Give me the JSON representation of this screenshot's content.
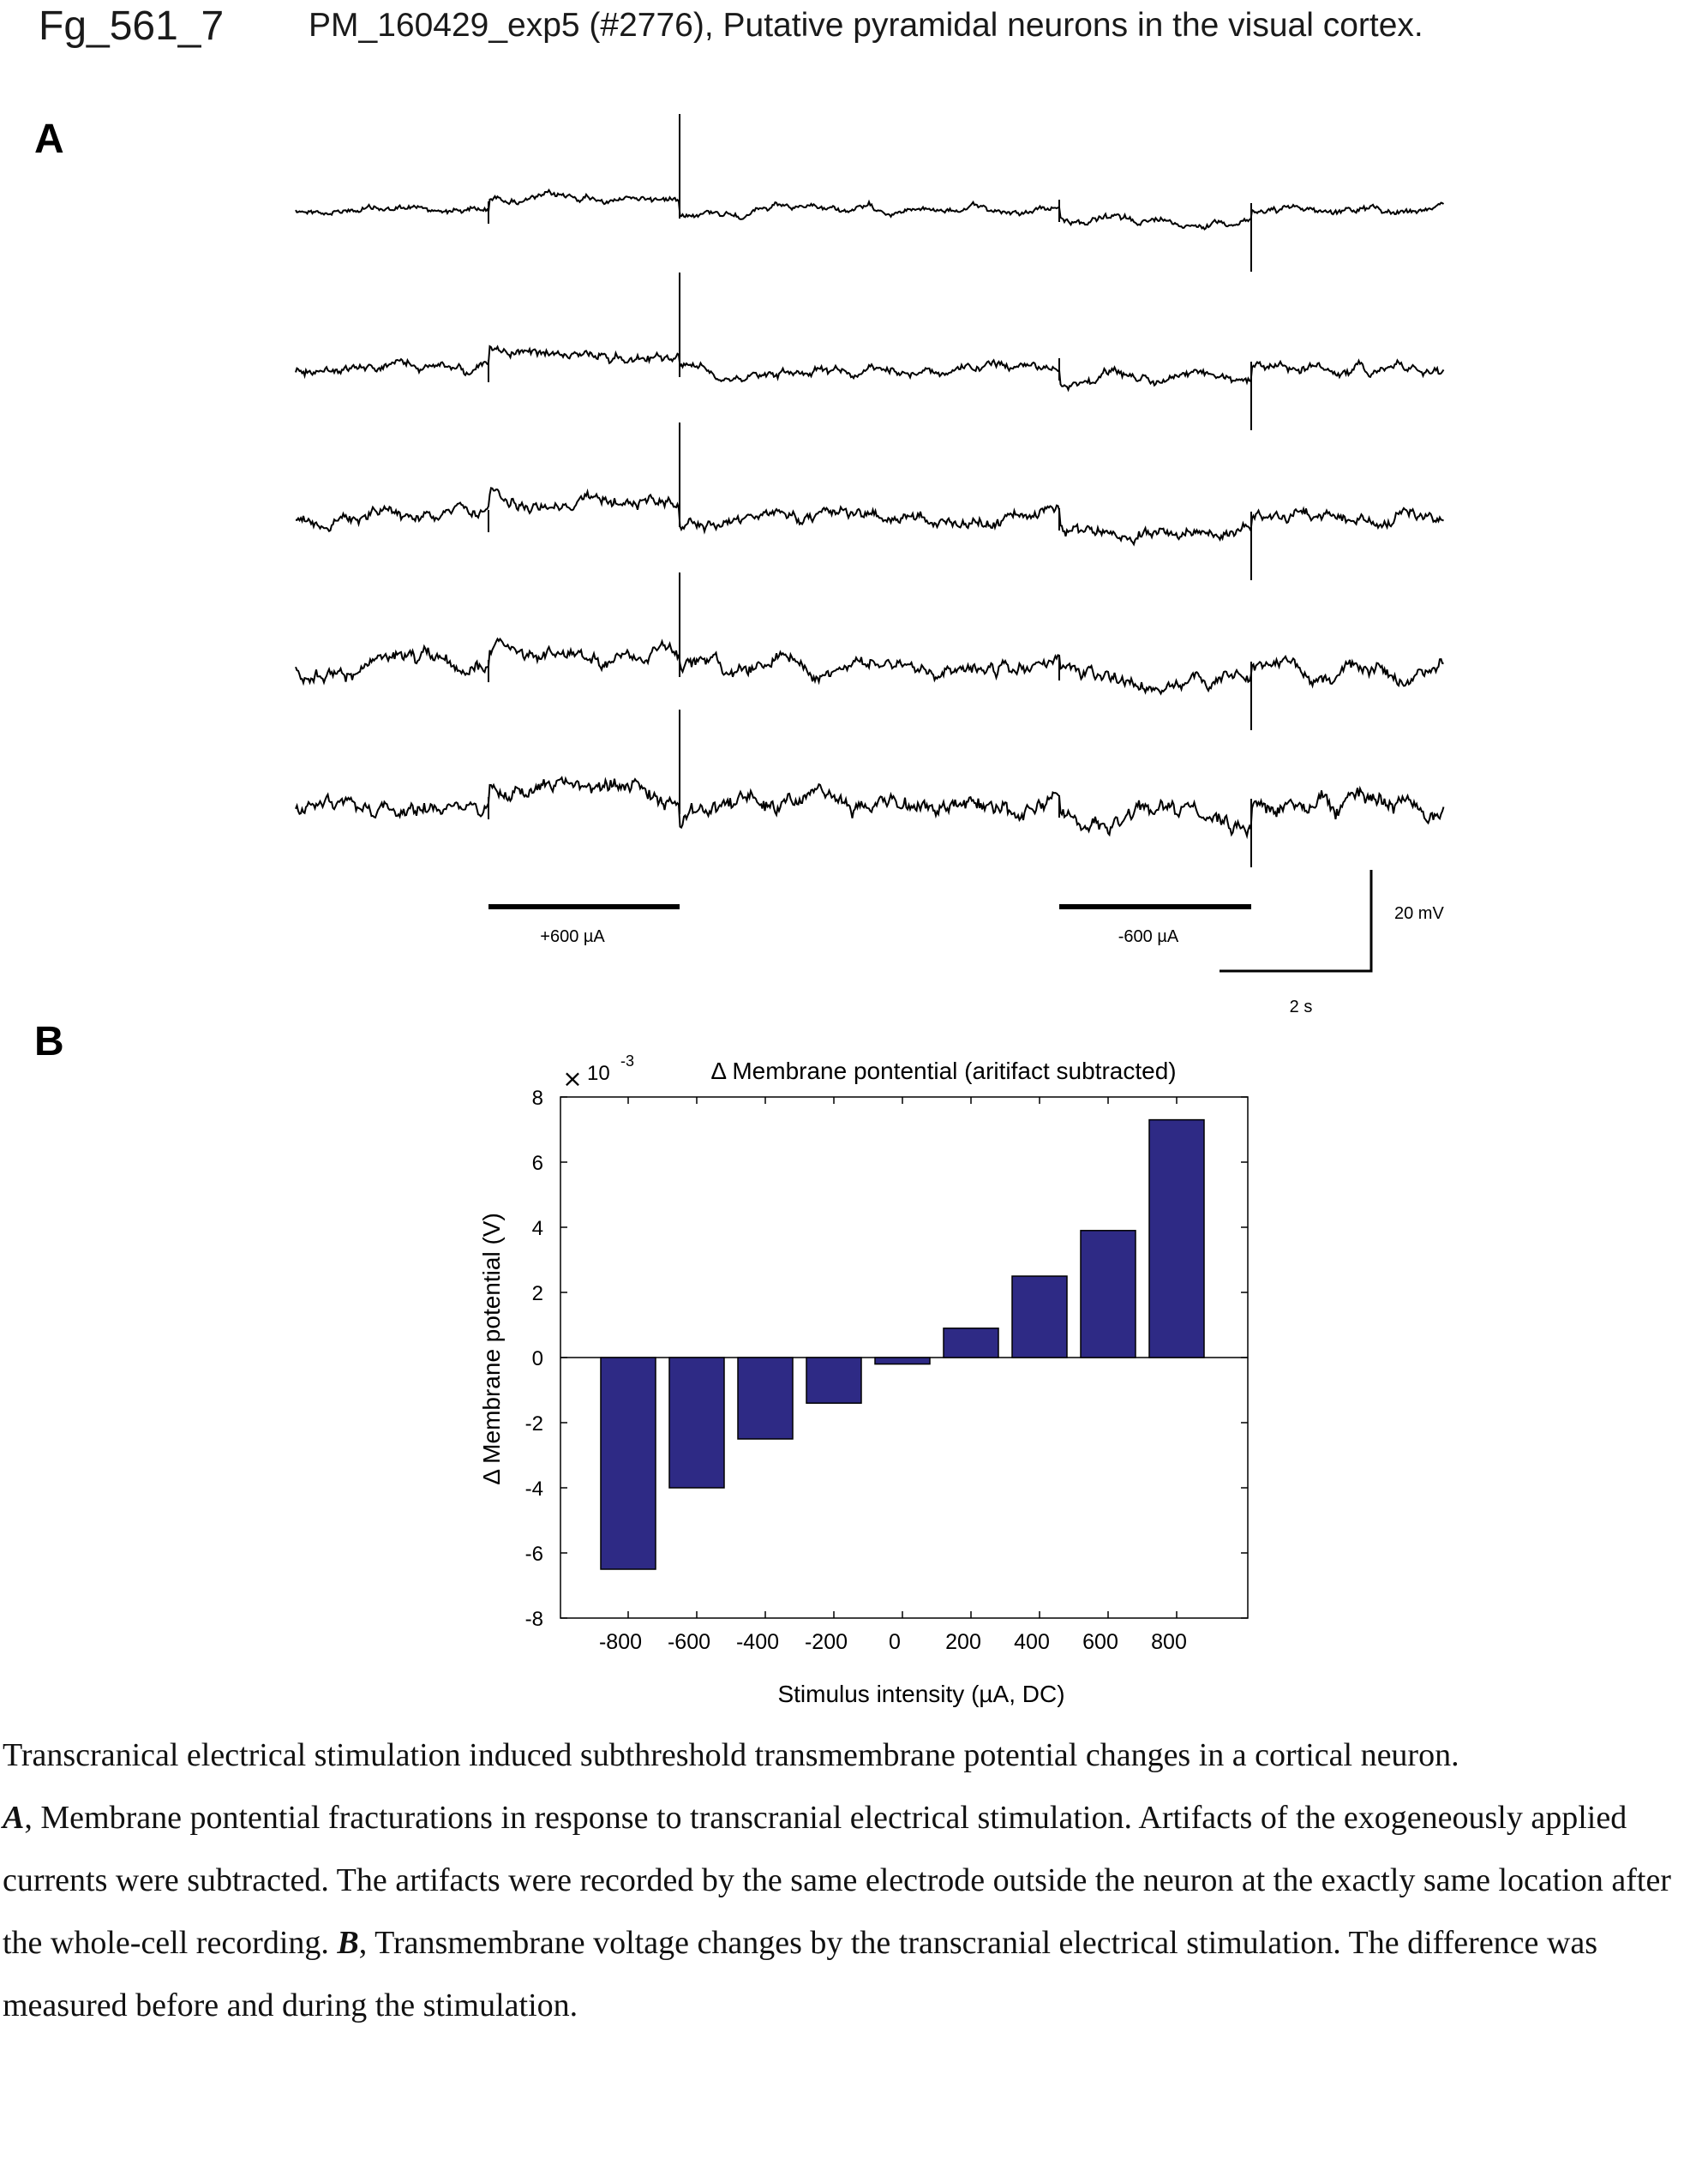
{
  "header": {
    "figure_id": "Fg_561_7",
    "title": "PM_160429_exp5 (#2776), Putative pyramidal neurons in the visual cortex."
  },
  "panel_a": {
    "label": "A",
    "stim_pos_label": "+600 µA",
    "stim_neg_label": "-600 µA",
    "scale_v_label": "20 mV",
    "scale_t_label": "2 s",
    "trace_count": 5
  },
  "panel_b": {
    "label": "B"
  },
  "chart_data": {
    "type": "bar",
    "title": "Δ Membrane pontential (aritifact subtracted)",
    "exponent_label": "10",
    "exponent_power": "-3",
    "xlabel": "Stimulus intensity (µA, DC)",
    "ylabel": "Δ Membrane potential (V)",
    "categories": [
      "-800",
      "-600",
      "-400",
      "-200",
      "0",
      "200",
      "400",
      "600",
      "800"
    ],
    "values": [
      -6.5,
      -4.0,
      -2.5,
      -1.4,
      -0.2,
      0.9,
      2.5,
      3.9,
      7.3
    ],
    "value_multiplier": "1e-3",
    "ylim": [
      -8,
      8
    ],
    "yticks": [
      "-8",
      "-6",
      "-4",
      "-2",
      "0",
      "2",
      "4",
      "6",
      "8"
    ],
    "bar_color": "#2e2a85",
    "grid": false
  },
  "caption": {
    "line1": "Transcranical electrical stimulation induced subthreshold transmembrane potential changes in a cortical neuron.",
    "a_label": "A",
    "a_text": ", Membrane pontential fracturations in response to transcranial electrical stimulation. Artifacts of the exogeneously applied currents were  subtracted. The artifacts were recorded by the same electrode outside the neuron at the exactly same location after the whole-cell recording.  ",
    "b_label": "B",
    "b_text": ", Transmembrane voltage changes by the transcranial electrical stimulation. The difference was measured before and during the stimulation."
  }
}
